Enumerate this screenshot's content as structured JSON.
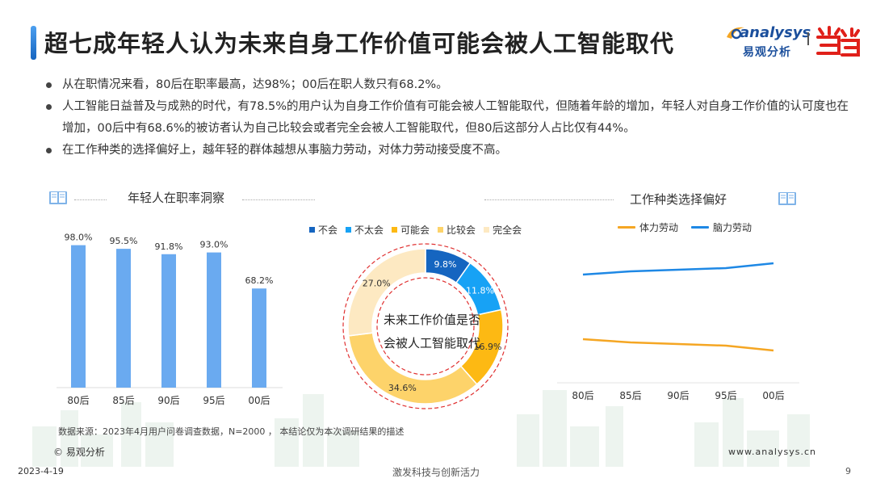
{
  "title": "超七成年轻人认为未来自身工作价值可能会被人工智能取代",
  "logo": {
    "en": "analysys",
    "cn": "易观分析"
  },
  "bullets": [
    "从在职情况来看，80后在职率最高，达98%；00后在职人数只有68.2%。",
    "人工智能日益普及与成熟的时代，有78.5%的用户认为自身工作价值有可能会被人工智能取代，但随着年龄的增加，年轻人对自身工作价值的认可度也在增加，00后中有68.6%的被访者认为自己比较会或者完全会被人工智能取代，但80后这部分人占比仅有44%。",
    "在工作种类的选择偏好上，越年轻的群体越想从事脑力劳动，对体力劳动接受度不高。"
  ],
  "left_section_title": "年轻人在职率洞察",
  "right_section_title": "工作种类选择偏好",
  "donut_center": [
    "未来工作价值是否",
    "会被人工智能取代"
  ],
  "colors": {
    "bar": "#6aaaf0",
    "donut": [
      "#1565c0",
      "#17a2f5",
      "#fdb913",
      "#fdd36a",
      "#fde9c2"
    ],
    "physical": "#f5a623",
    "mental": "#1e88e5",
    "accent_red": "#e03131"
  },
  "chart_data": [
    {
      "type": "bar",
      "title": "年轻人在职率洞察",
      "categories": [
        "80后",
        "85后",
        "90后",
        "95后",
        "00后"
      ],
      "values": [
        98.0,
        95.5,
        91.8,
        93.0,
        68.2
      ],
      "value_labels": [
        "98.0%",
        "95.5%",
        "91.8%",
        "93.0%",
        "68.2%"
      ],
      "ylim": [
        0,
        100
      ],
      "grid": false
    },
    {
      "type": "pie",
      "title": "未来工作价值是否会被人工智能取代",
      "categories": [
        "不会",
        "不太会",
        "可能会",
        "比较会",
        "完全会"
      ],
      "values": [
        9.8,
        11.8,
        16.9,
        34.6,
        27.0
      ],
      "value_labels": [
        "9.8%",
        "11.8%",
        "16.9%",
        "34.6%",
        "27.0%"
      ],
      "legend": "top"
    },
    {
      "type": "line",
      "title": "工作种类选择偏好",
      "categories": [
        "80后",
        "85后",
        "90后",
        "95后",
        "00后"
      ],
      "series": [
        {
          "name": "体力劳动",
          "values": [
            0.8,
            0.78,
            0.77,
            0.76,
            0.73
          ]
        },
        {
          "name": "脑力劳动",
          "values": [
            1.2,
            1.22,
            1.23,
            1.24,
            1.27
          ]
        }
      ],
      "ylim": [
        0.5,
        1.5
      ],
      "legend": "top",
      "grid": false
    }
  ],
  "source": "数据来源：2023年4月用户问卷调查数据，N=2000 ， 本结论仅为本次调研结果的描述",
  "copyright": "© 易观分析",
  "url": "www.analysys.cn",
  "footer": {
    "date": "2023-4-19",
    "center": "激发科技与创新活力",
    "page": "9"
  }
}
